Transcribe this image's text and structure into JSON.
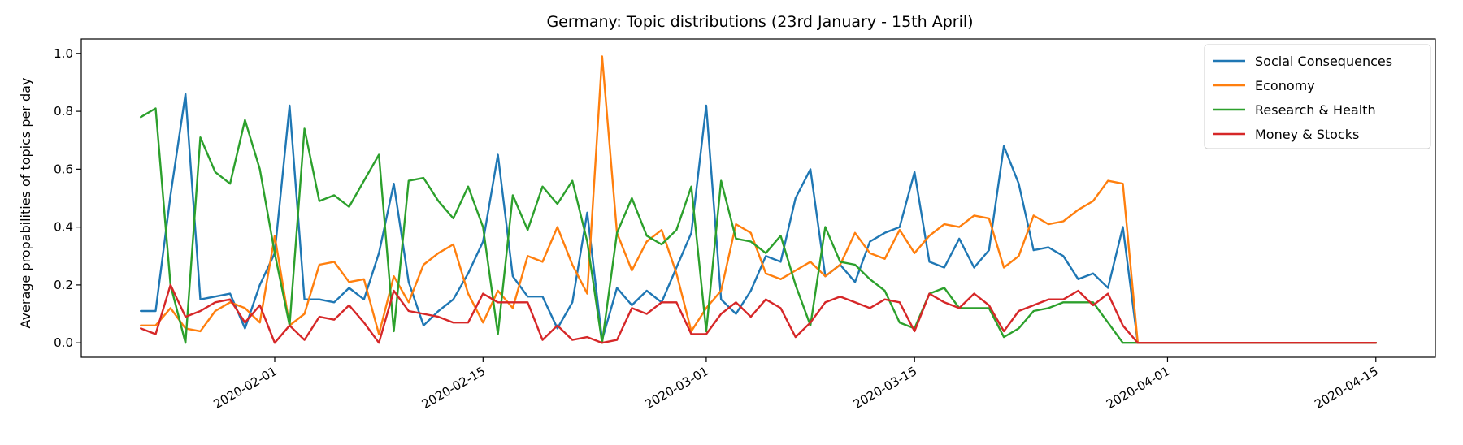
{
  "chart_data": {
    "type": "line",
    "title": "Germany: Topic distributions (23rd January - 15th April)",
    "xlabel": "",
    "ylabel": "Average propabilities of topics per day",
    "x_start": "2020-01-23",
    "x_end": "2020-04-15",
    "xlim": [
      "2020-01-19",
      "2020-04-19"
    ],
    "ylim": [
      -0.05,
      1.05
    ],
    "xticks": [
      "2020-02-01",
      "2020-02-15",
      "2020-03-01",
      "2020-03-15",
      "2020-04-01",
      "2020-04-15"
    ],
    "yticks": [
      "0.0",
      "0.2",
      "0.4",
      "0.6",
      "0.8",
      "1.0"
    ],
    "grid": false,
    "legend_position": "top-right",
    "series": [
      {
        "name": "Social Consequences",
        "color": "#1f77b4",
        "values": [
          0.11,
          0.11,
          0.51,
          0.86,
          0.15,
          0.16,
          0.17,
          0.05,
          0.2,
          0.31,
          0.82,
          0.15,
          0.15,
          0.14,
          0.19,
          0.15,
          0.31,
          0.55,
          0.21,
          0.06,
          0.11,
          0.15,
          0.24,
          0.35,
          0.65,
          0.23,
          0.16,
          0.16,
          0.05,
          0.14,
          0.45,
          0.01,
          0.19,
          0.13,
          0.18,
          0.14,
          0.26,
          0.38,
          0.82,
          0.15,
          0.1,
          0.18,
          0.3,
          0.28,
          0.5,
          0.6,
          0.23,
          0.27,
          0.21,
          0.35,
          0.38,
          0.4,
          0.59,
          0.28,
          0.26,
          0.36,
          0.26,
          0.32,
          0.68,
          0.55,
          0.32,
          0.33,
          0.3,
          0.22,
          0.24,
          0.19,
          0.4,
          0,
          0,
          0,
          0,
          0,
          0,
          0,
          0,
          0,
          0,
          0,
          0,
          0,
          0,
          0,
          0,
          0
        ]
      },
      {
        "name": "Economy",
        "color": "#ff7f0e",
        "values": [
          0.06,
          0.06,
          0.12,
          0.05,
          0.04,
          0.11,
          0.14,
          0.12,
          0.07,
          0.37,
          0.06,
          0.1,
          0.27,
          0.28,
          0.21,
          0.22,
          0.03,
          0.23,
          0.14,
          0.27,
          0.31,
          0.34,
          0.17,
          0.07,
          0.18,
          0.12,
          0.3,
          0.28,
          0.4,
          0.27,
          0.17,
          0.99,
          0.38,
          0.25,
          0.35,
          0.39,
          0.24,
          0.04,
          0.12,
          0.18,
          0.41,
          0.38,
          0.24,
          0.22,
          0.25,
          0.28,
          0.23,
          0.27,
          0.38,
          0.31,
          0.29,
          0.39,
          0.31,
          0.37,
          0.41,
          0.4,
          0.44,
          0.43,
          0.26,
          0.3,
          0.44,
          0.41,
          0.42,
          0.46,
          0.49,
          0.56,
          0.55,
          0,
          0,
          0,
          0,
          0,
          0,
          0,
          0,
          0,
          0,
          0,
          0,
          0,
          0,
          0,
          0,
          0
        ]
      },
      {
        "name": "Research & Health",
        "color": "#2ca02c",
        "values": [
          0.78,
          0.81,
          0.2,
          0.0,
          0.71,
          0.59,
          0.55,
          0.77,
          0.6,
          0.31,
          0.06,
          0.74,
          0.49,
          0.51,
          0.47,
          0.56,
          0.65,
          0.04,
          0.56,
          0.57,
          0.49,
          0.43,
          0.54,
          0.4,
          0.03,
          0.51,
          0.39,
          0.54,
          0.48,
          0.56,
          0.35,
          0.0,
          0.38,
          0.5,
          0.37,
          0.34,
          0.39,
          0.54,
          0.04,
          0.56,
          0.36,
          0.35,
          0.31,
          0.37,
          0.2,
          0.06,
          0.4,
          0.28,
          0.27,
          0.22,
          0.18,
          0.07,
          0.05,
          0.17,
          0.19,
          0.12,
          0.12,
          0.12,
          0.02,
          0.05,
          0.11,
          0.12,
          0.14,
          0.14,
          0.14,
          0.07,
          0.0,
          0,
          0,
          0,
          0,
          0,
          0,
          0,
          0,
          0,
          0,
          0,
          0,
          0,
          0,
          0,
          0,
          0
        ]
      },
      {
        "name": "Money & Stocks",
        "color": "#d62728",
        "values": [
          0.05,
          0.03,
          0.2,
          0.09,
          0.11,
          0.14,
          0.15,
          0.07,
          0.13,
          0.0,
          0.06,
          0.01,
          0.09,
          0.08,
          0.13,
          0.07,
          0.0,
          0.18,
          0.11,
          0.1,
          0.09,
          0.07,
          0.07,
          0.17,
          0.14,
          0.14,
          0.14,
          0.01,
          0.06,
          0.01,
          0.02,
          0.0,
          0.01,
          0.12,
          0.1,
          0.14,
          0.14,
          0.03,
          0.03,
          0.1,
          0.14,
          0.09,
          0.15,
          0.12,
          0.02,
          0.07,
          0.14,
          0.16,
          0.14,
          0.12,
          0.15,
          0.14,
          0.04,
          0.17,
          0.14,
          0.12,
          0.17,
          0.13,
          0.04,
          0.11,
          0.13,
          0.15,
          0.15,
          0.18,
          0.13,
          0.17,
          0.06,
          0,
          0,
          0,
          0,
          0,
          0,
          0,
          0,
          0,
          0,
          0,
          0,
          0,
          0,
          0,
          0,
          0
        ]
      }
    ]
  }
}
